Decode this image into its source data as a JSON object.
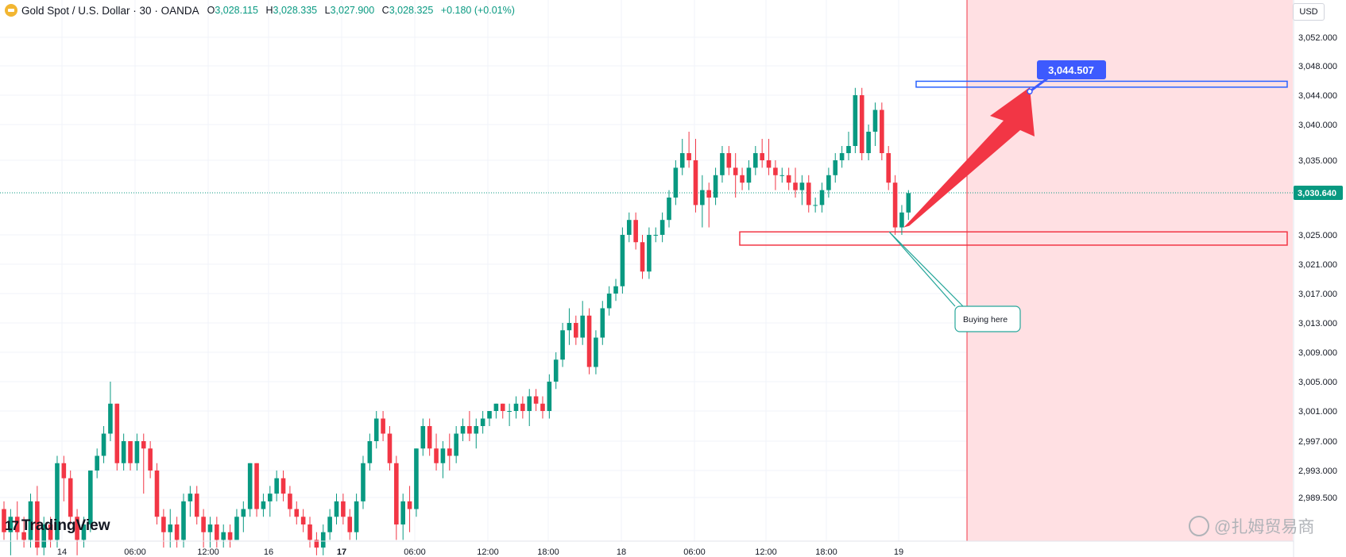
{
  "header": {
    "title": "Gold Spot / U.S. Dollar · 30 · OANDA",
    "ohlc": [
      {
        "k": "O",
        "v": "3,028.115"
      },
      {
        "k": "H",
        "v": "3,028.335"
      },
      {
        "k": "L",
        "v": "3,027.900"
      },
      {
        "k": "C",
        "v": "3,028.325"
      }
    ],
    "change": "+0.180 (+0.01%)"
  },
  "currency": "USD",
  "branding": {
    "logo_text": "TradingView",
    "logo_mark": "17",
    "watermark": "@扎姆贸易商"
  },
  "colors": {
    "up": "#089981",
    "down": "#f23645",
    "zone_blue": "#2962ff",
    "zone_red": "#f23645",
    "future_bg": "#ffe0e3",
    "target_label": "#3d5afe",
    "arrow": "#f23645"
  },
  "annotations": {
    "target_price": "3,044.507",
    "current_price": "3,030.640",
    "callout": "Buying here"
  },
  "chart_data": {
    "type": "candlestick",
    "symbol": "Gold Spot / U.S. Dollar",
    "interval": "30",
    "y_ticks": [
      3052,
      3048,
      3044,
      3040,
      3035,
      3025,
      3021,
      3017,
      3013,
      3009,
      3005,
      3001,
      2997,
      2993,
      2989.5
    ],
    "y_tick_labels": [
      "3,052.000",
      "3,048.000",
      "3,044.000",
      "3,040.000",
      "3,035.000",
      "3,025.000",
      "3,021.000",
      "3,017.000",
      "3,013.000",
      "3,009.000",
      "3,005.000",
      "3,001.000",
      "2,997.000",
      "2,993.000",
      "2,989.500"
    ],
    "x_labels": [
      "14",
      "06:00",
      "12:00",
      "16",
      "17",
      "06:00",
      "12:00",
      "18:00",
      "18",
      "06:00",
      "12:00",
      "18:00",
      "19"
    ],
    "x_label_bold": [
      "17"
    ],
    "resistance_zone": [
      3045.1,
      3045.9
    ],
    "support_zone": [
      3023.6,
      3025.4
    ],
    "last_price": 3030.64,
    "target": 3044.507,
    "ohlc": [
      [
        2988,
        2989,
        2984,
        2985
      ],
      [
        2985,
        2988,
        2982,
        2987
      ],
      [
        2987,
        2989,
        2984,
        2985
      ],
      [
        2985,
        2987,
        2983,
        2984
      ],
      [
        2984,
        2990,
        2983,
        2989
      ],
      [
        2989,
        2991,
        2982,
        2983
      ],
      [
        2983,
        2987,
        2982,
        2986
      ],
      [
        2986,
        2987,
        2983,
        2984
      ],
      [
        2984,
        2995,
        2983,
        2994
      ],
      [
        2994,
        2995,
        2989,
        2992
      ],
      [
        2992,
        2993,
        2986,
        2987
      ],
      [
        2987,
        2988,
        2982,
        2984
      ],
      [
        2984,
        2987,
        2983,
        2986
      ],
      [
        2986,
        2993,
        2985,
        2993
      ],
      [
        2993,
        2996,
        2992,
        2995
      ],
      [
        2995,
        2999,
        2994,
        2998
      ],
      [
        2998,
        3005,
        2997,
        3002
      ],
      [
        3002,
        3002,
        2993,
        2994
      ],
      [
        2994,
        2998,
        2993,
        2997
      ],
      [
        2997,
        2997,
        2993,
        2994
      ],
      [
        2994,
        2998,
        2993,
        2997
      ],
      [
        2997,
        2998,
        2990,
        2996
      ],
      [
        2996,
        2997,
        2992,
        2993
      ],
      [
        2993,
        2994,
        2986,
        2987
      ],
      [
        2987,
        2988,
        2983,
        2985
      ],
      [
        2985,
        2988,
        2983,
        2986
      ],
      [
        2986,
        2987,
        2983,
        2984
      ],
      [
        2984,
        2990,
        2983,
        2989
      ],
      [
        2989,
        2991,
        2987,
        2990
      ],
      [
        2990,
        2991,
        2986,
        2987
      ],
      [
        2987,
        2988,
        2983,
        2985
      ],
      [
        2985,
        2987,
        2983,
        2986
      ],
      [
        2986,
        2987,
        2983,
        2984
      ],
      [
        2984,
        2986,
        2983,
        2985
      ],
      [
        2985,
        2986,
        2983,
        2984
      ],
      [
        2984,
        2988,
        2984,
        2987
      ],
      [
        2987,
        2989,
        2985,
        2988
      ],
      [
        2988,
        2994,
        2987,
        2994
      ],
      [
        2994,
        2994,
        2987,
        2988
      ],
      [
        2988,
        2990,
        2987,
        2989
      ],
      [
        2989,
        2991,
        2987,
        2990
      ],
      [
        2990,
        2993,
        2989,
        2992
      ],
      [
        2992,
        2993,
        2989,
        2990
      ],
      [
        2990,
        2991,
        2987,
        2988
      ],
      [
        2988,
        2989,
        2986,
        2987
      ],
      [
        2987,
        2988,
        2985,
        2986
      ],
      [
        2986,
        2987,
        2983,
        2984
      ],
      [
        2984,
        2985,
        2982,
        2983
      ],
      [
        2983,
        2986,
        2982,
        2985
      ],
      [
        2985,
        2988,
        2984,
        2987
      ],
      [
        2987,
        2990,
        2986,
        2989
      ],
      [
        2989,
        2990,
        2986,
        2987
      ],
      [
        2987,
        2988,
        2984,
        2985
      ],
      [
        2985,
        2990,
        2984,
        2989
      ],
      [
        2989,
        2995,
        2988,
        2994
      ],
      [
        2994,
        2998,
        2993,
        2997
      ],
      [
        2997,
        3001,
        2996,
        3000
      ],
      [
        3000,
        3001,
        2997,
        2998
      ],
      [
        2998,
        2999,
        2993,
        2994
      ],
      [
        2994,
        2995,
        2984,
        2986
      ],
      [
        2986,
        2990,
        2984,
        2989
      ],
      [
        2989,
        2991,
        2985,
        2988
      ],
      [
        2988,
        2996,
        2987,
        2996
      ],
      [
        2996,
        3000,
        2995,
        2999
      ],
      [
        2999,
        3000,
        2995,
        2996
      ],
      [
        2996,
        2998,
        2993,
        2994
      ],
      [
        2994,
        2997,
        2992,
        2996
      ],
      [
        2996,
        2998,
        2993,
        2995
      ],
      [
        2995,
        2999,
        2994,
        2998
      ],
      [
        2998,
        3000,
        2997,
        2999
      ],
      [
        2999,
        3001,
        2997,
        2998
      ],
      [
        2998,
        3000,
        2996,
        2999
      ],
      [
        2999,
        3001,
        2998,
        3000
      ],
      [
        3000,
        3001,
        2999,
        3001
      ],
      [
        3001,
        3002,
        3000,
        3002
      ],
      [
        3002,
        3002,
        3000,
        3001
      ],
      [
        3001,
        3002,
        2999,
        3001
      ],
      [
        3001,
        3003,
        3000,
        3002
      ],
      [
        3002,
        3003,
        3000,
        3001
      ],
      [
        3001,
        3004,
        2999,
        3003
      ],
      [
        3003,
        3004,
        3001,
        3002
      ],
      [
        3002,
        3003,
        3000,
        3001
      ],
      [
        3001,
        3006,
        3000,
        3005
      ],
      [
        3005,
        3009,
        3004,
        3008
      ],
      [
        3008,
        3013,
        3007,
        3012
      ],
      [
        3012,
        3015,
        3010,
        3013
      ],
      [
        3013,
        3014,
        3010,
        3011
      ],
      [
        3011,
        3016,
        3010,
        3014
      ],
      [
        3014,
        3015,
        3006,
        3007
      ],
      [
        3007,
        3012,
        3006,
        3011
      ],
      [
        3011,
        3016,
        3010,
        3015
      ],
      [
        3015,
        3018,
        3014,
        3017
      ],
      [
        3017,
        3019,
        3016,
        3018
      ],
      [
        3018,
        3026,
        3017,
        3025
      ],
      [
        3025,
        3028,
        3024,
        3027
      ],
      [
        3027,
        3028,
        3023,
        3024
      ],
      [
        3024,
        3025,
        3019,
        3020
      ],
      [
        3020,
        3026,
        3019,
        3025
      ],
      [
        3025,
        3026,
        3024,
        3025
      ],
      [
        3025,
        3028,
        3024,
        3027
      ],
      [
        3027,
        3031,
        3026,
        3030
      ],
      [
        3030,
        3035,
        3029,
        3034
      ],
      [
        3034,
        3038,
        3033,
        3036
      ],
      [
        3036,
        3039,
        3034,
        3035
      ],
      [
        3035,
        3038,
        3028,
        3029
      ],
      [
        3029,
        3033,
        3026,
        3031
      ],
      [
        3031,
        3032,
        3026,
        3030
      ],
      [
        3030,
        3034,
        3029,
        3033
      ],
      [
        3033,
        3037,
        3032,
        3036
      ],
      [
        3036,
        3037,
        3033,
        3034
      ],
      [
        3034,
        3036,
        3030,
        3033
      ],
      [
        3033,
        3034,
        3031,
        3032
      ],
      [
        3032,
        3035,
        3031,
        3034
      ],
      [
        3034,
        3037,
        3033,
        3036
      ],
      [
        3036,
        3038,
        3034,
        3035
      ],
      [
        3035,
        3038,
        3033,
        3034
      ],
      [
        3034,
        3035,
        3031,
        3033
      ],
      [
        3033,
        3034,
        3032,
        3033
      ],
      [
        3033,
        3034,
        3031,
        3032
      ],
      [
        3032,
        3034,
        3030,
        3031
      ],
      [
        3031,
        3033,
        3029,
        3032
      ],
      [
        3032,
        3033,
        3028,
        3029
      ],
      [
        3029,
        3030,
        3028,
        3029
      ],
      [
        3029,
        3032,
        3028,
        3031
      ],
      [
        3031,
        3034,
        3030,
        3033
      ],
      [
        3033,
        3036,
        3032,
        3035
      ],
      [
        3035,
        3037,
        3034,
        3036
      ],
      [
        3036,
        3039,
        3035,
        3037
      ],
      [
        3037,
        3045,
        3036,
        3044
      ],
      [
        3044,
        3045,
        3035,
        3036
      ],
      [
        3036,
        3040,
        3035,
        3039
      ],
      [
        3039,
        3043,
        3037,
        3042
      ],
      [
        3042,
        3043,
        3035,
        3036
      ],
      [
        3036,
        3037,
        3031,
        3032
      ],
      [
        3032,
        3033,
        3025,
        3026
      ],
      [
        3026,
        3029,
        3025,
        3028
      ],
      [
        3028,
        3031,
        3027,
        3030.6
      ]
    ]
  }
}
